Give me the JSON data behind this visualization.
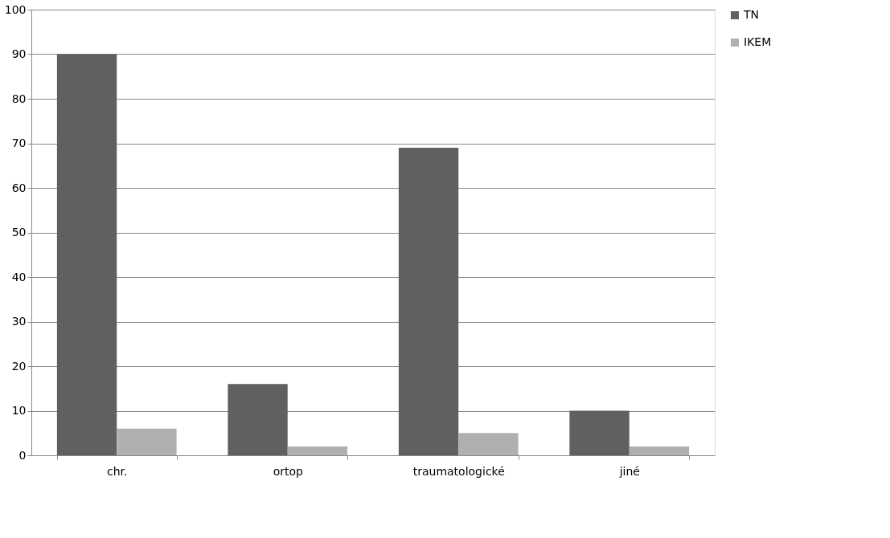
{
  "chart_data": {
    "type": "bar",
    "categories": [
      "chr.",
      "ortop",
      "traumatologické",
      "jiné"
    ],
    "series": [
      {
        "name": "TN",
        "color": "#606060",
        "values": [
          90,
          16,
          69,
          10
        ]
      },
      {
        "name": "IKEM",
        "color": "#b0b0b0",
        "values": [
          6,
          2,
          5,
          2
        ]
      }
    ],
    "ylim": [
      0,
      100
    ],
    "yticks": [
      0,
      10,
      20,
      30,
      40,
      50,
      60,
      70,
      80,
      90,
      100
    ],
    "grid": "y",
    "legend": "right"
  }
}
